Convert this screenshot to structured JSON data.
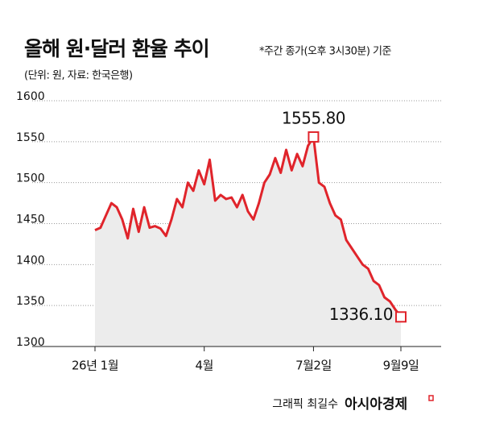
{
  "title": "올해 원·달러 환율 추이",
  "subtitle": "*주간 종가(오후 3시30분) 기준",
  "unit_note": "(단위: 원, 자료: 한국은행)",
  "chart_data": {
    "type": "line",
    "categories": [
      "26년 1월",
      null,
      null,
      null,
      null,
      null,
      null,
      null,
      null,
      null,
      null,
      null,
      null,
      null,
      null,
      null,
      null,
      null,
      null,
      null,
      "4월",
      null,
      null,
      null,
      null,
      null,
      null,
      null,
      null,
      null,
      null,
      null,
      null,
      null,
      null,
      null,
      null,
      null,
      null,
      null,
      "7월2일",
      null,
      null,
      null,
      null,
      null,
      null,
      null,
      null,
      null,
      null,
      null,
      null,
      null,
      null,
      null,
      "9월9일"
    ],
    "values": [
      1442,
      1445,
      1460,
      1475,
      1470,
      1455,
      1432,
      1468,
      1440,
      1470,
      1445,
      1447,
      1444,
      1435,
      1455,
      1480,
      1470,
      1500,
      1490,
      1515,
      1498,
      1528,
      1478,
      1485,
      1480,
      1482,
      1470,
      1485,
      1465,
      1455,
      1475,
      1500,
      1510,
      1530,
      1512,
      1540,
      1515,
      1535,
      1520,
      1545,
      1555.8,
      1500,
      1495,
      1475,
      1460,
      1455,
      1430,
      1420,
      1410,
      1400,
      1395,
      1380,
      1375,
      1360,
      1355,
      1345,
      1336.1
    ],
    "value_labels": [
      null,
      null,
      null,
      null,
      null,
      null,
      null,
      null,
      null,
      null,
      null,
      null,
      null,
      null,
      null,
      null,
      null,
      null,
      null,
      null,
      null,
      null,
      null,
      null,
      null,
      null,
      null,
      null,
      null,
      null,
      null,
      null,
      null,
      null,
      null,
      null,
      null,
      null,
      null,
      null,
      "1555.80",
      null,
      null,
      null,
      null,
      null,
      null,
      null,
      null,
      null,
      null,
      null,
      null,
      null,
      null,
      null,
      "1336.10"
    ],
    "color": "#e0242b",
    "ylim": [
      1300,
      1600
    ],
    "yticks": [
      1300,
      1350,
      1400,
      1450,
      1500,
      1550,
      1600
    ],
    "grid": true
  },
  "footer": {
    "credit": "그래픽 최길수",
    "brand": "아시아경제"
  }
}
